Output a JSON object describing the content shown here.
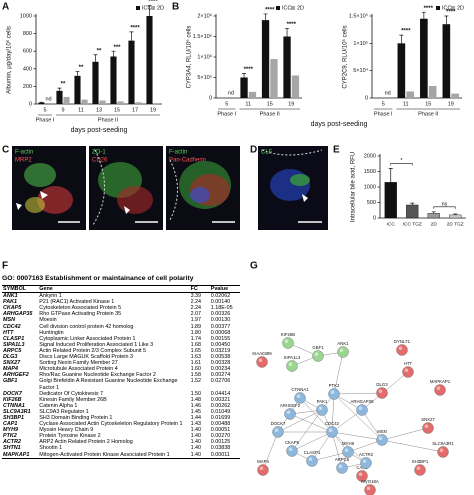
{
  "panel_labels": [
    "A",
    "B",
    "C",
    "D",
    "E",
    "F",
    "G"
  ],
  "chart_data": [
    {
      "type": "bar",
      "y_label": "Albumin, μg/day/10⁶ cells",
      "x_label": "days post-seeding",
      "categories": [
        "5",
        "9",
        "11",
        "13",
        "15",
        "17",
        "19"
      ],
      "phase_labels": [
        "Phase I",
        "Phase II"
      ],
      "series": [
        {
          "name": "ICC",
          "color": "#111111",
          "values": [
            15,
            150,
            320,
            480,
            540,
            720,
            1000
          ],
          "errors": [
            5,
            30,
            50,
            80,
            60,
            100,
            120
          ]
        },
        {
          "name": "2D",
          "color": "#a6a6a6",
          "values": [
            null,
            80,
            50,
            40,
            30,
            20,
            10
          ],
          "value_labels": [
            "nd",
            null,
            null,
            null,
            null,
            null,
            null
          ]
        }
      ],
      "significance": [
        null,
        "**",
        "**",
        "**",
        "***",
        "****",
        "****"
      ],
      "ylim": [
        0,
        1000
      ],
      "yticks": [
        0,
        200,
        400,
        600,
        800,
        1000
      ]
    },
    {
      "type": "bar",
      "y_label": "CYP3A4, RLU/10⁶ cells",
      "x_label": "days post-seeding",
      "categories": [
        "5",
        "11",
        "15",
        "19"
      ],
      "phase_labels": [
        "Phase I",
        "Phase II"
      ],
      "series": [
        {
          "name": "ICC",
          "color": "#111111",
          "values": [
            null,
            500000,
            1900000,
            1500000
          ],
          "errors": [
            null,
            100000,
            150000,
            200000
          ]
        },
        {
          "name": "2D",
          "color": "#a6a6a6",
          "values": [
            null,
            150000,
            950000,
            550000
          ],
          "value_labels": [
            "nd",
            null,
            null,
            null
          ]
        }
      ],
      "significance": [
        null,
        "****",
        "****",
        "****"
      ],
      "ylim": [
        0,
        2000000
      ],
      "yticks": [
        0,
        {
          "value": 500000,
          "label": "5×10⁵"
        },
        {
          "value": 1000000,
          "label": "1×10⁶"
        },
        {
          "value": 1500000,
          "label": "1.5×10⁶"
        },
        {
          "value": 2000000,
          "label": "2×10⁶"
        }
      ]
    },
    {
      "type": "bar",
      "y_label": "CYP2C9, RLU/10⁶ cells",
      "categories": [
        "5",
        "11",
        "15",
        "19"
      ],
      "phase_labels": [
        "Phase I",
        "Phase II"
      ],
      "series": [
        {
          "name": "ICC",
          "color": "#111111",
          "values": [
            null,
            100000,
            145000,
            135000
          ],
          "errors": [
            null,
            15000,
            12000,
            15000
          ]
        },
        {
          "name": "2D",
          "color": "#a6a6a6",
          "values": [
            null,
            12000,
            22000,
            8000
          ],
          "value_labels": [
            "nd",
            null,
            null,
            null
          ]
        }
      ],
      "significance": [
        null,
        "****",
        "****",
        "****"
      ],
      "ylim": [
        0,
        150000
      ],
      "yticks": [
        0,
        {
          "value": 50000,
          "label": "5×10⁴"
        },
        {
          "value": 100000,
          "label": "1×10⁵"
        },
        {
          "value": 150000,
          "label": "1.5×10⁵"
        }
      ]
    },
    {
      "type": "bar",
      "y_label": "Intracellular bile acid, RFU",
      "categories": [
        "ICC",
        "ICC TGZ",
        "2D",
        "2D TGZ"
      ],
      "values": [
        1150,
        420,
        150,
        100
      ],
      "errors": [
        450,
        60,
        50,
        30
      ],
      "colors": [
        "#111111",
        "#555555",
        "#999999",
        "#cccccc"
      ],
      "comparisons": [
        "*",
        "ns"
      ],
      "ylim": [
        0,
        2000
      ],
      "yticks": [
        0,
        500,
        1000,
        1500,
        2000
      ]
    }
  ],
  "images": [
    {
      "labels": [
        "F-actin",
        "MRP2"
      ]
    },
    {
      "labels": [
        "ZO-1",
        "CD26"
      ]
    },
    {
      "labels": [
        "F-actin",
        "Pan-Cadherin"
      ]
    },
    {
      "labels": [
        "CLF"
      ]
    }
  ],
  "table": {
    "title": "GO: 0007163 Establishment or maintainance of cell polarity",
    "header": [
      "SYMBOL",
      "Gene",
      "FC",
      "Pvalue"
    ],
    "rows": [
      [
        "ANK1",
        "Ankyrin 1",
        "3.39",
        "0.02062"
      ],
      [
        "PAK1",
        "P21 (RAC1) Activated Kinase 1",
        "2.24",
        "0.00140"
      ],
      [
        "CKAP5",
        "Cytoskeleton Associated Protein 5",
        "2.24",
        "1.18E-05"
      ],
      [
        "ARHGAP35",
        "Rho GTPase Activating Protein 35",
        "2.07",
        "0.00326"
      ],
      [
        "MSN",
        "Moesin",
        "1.97",
        "0.00130"
      ],
      [
        "CDC42",
        "Cell division control protein 42 homolog",
        "1.89",
        "0.00377"
      ],
      [
        "HTT",
        "Huntingtin",
        "1.80",
        "0.00068"
      ],
      [
        "CLASP1",
        "Cytoplasmic Linker Associated Protein 1",
        "1.74",
        "0.00155"
      ],
      [
        "SIPA1L3",
        "Signal Induced Proliferation Associated 1 Like 3",
        "1.68",
        "0.00450"
      ],
      [
        "ARPC5",
        "Actin Related Protein 2/3 Complex Subunit 5",
        "1.65",
        "0.03219"
      ],
      [
        "DLG3",
        "Discs Large MAGUK Scaffold Protein 3",
        "1.63",
        "0.00538"
      ],
      [
        "SNX27",
        "Sorting Nexin Family Member 27",
        "1.61",
        "0.00328"
      ],
      [
        "MAP4",
        "Microtubule Associated Protein 4",
        "1.60",
        "0.00234"
      ],
      [
        "ARHGEF2",
        "Rho/Rac Guanine Nucleotide Exchange Factor 2",
        "1.58",
        "0.00274"
      ],
      [
        "GBF1",
        "Golgi Brefeldin A Resistant Guanine Nucleotide Exchange Factor 1",
        "1.52",
        "0.02706"
      ],
      [
        "DOCK7",
        "Dedicator Of Cytokinesis 7",
        "1.50",
        "0.04414"
      ],
      [
        "KIF26B",
        "Kinesin Family Member 26B",
        "1.48",
        "0.00321"
      ],
      [
        "CTNNA1",
        "Catenin Alpha 1",
        "1.46",
        "0.00262"
      ],
      [
        "SLC9A3R1",
        "SLC9A3 Regulator 1",
        "1.45",
        "0.01049"
      ],
      [
        "SH3BP1",
        "SH3 Domain Binding Protein 1",
        "1.44",
        "0.01699"
      ],
      [
        "CAP1",
        "Cyclase Associated Actin Cytoskeleton Regulatory Protein 1",
        "1.43",
        "0.00488"
      ],
      [
        "MYH9",
        "Myosin Heavy Chain 9",
        "1.40",
        "0.00051"
      ],
      [
        "PTK2",
        "Protein Tyrosine Kinase 2",
        "1.40",
        "0.00270"
      ],
      [
        "ACTR2",
        "ARP2 Actin Related Protein 2 Homolog",
        "1.40",
        "0.00125"
      ],
      [
        "SHTN1",
        "Shootin 1",
        "1.40",
        "0.03838"
      ],
      [
        "MAPKAP1",
        "Mitogen-Activated Protein Kinase Associated Protein 1",
        "1.40",
        "0.00011"
      ]
    ]
  },
  "network": {
    "nodes": [
      {
        "label": "KIF26B",
        "color": "#9ad68f"
      },
      {
        "label": "KIAA0389",
        "color": "#e36b6b"
      },
      {
        "label": "GBF1",
        "color": "#9ad68f"
      },
      {
        "label": "ANK1",
        "color": "#9ad68f"
      },
      {
        "label": "SIPA1L3",
        "color": "#9ad68f"
      },
      {
        "label": "DYNLT1",
        "color": "#e36b6b"
      },
      {
        "label": "HTT",
        "color": "#e36b6b"
      },
      {
        "label": "DLG3",
        "color": "#e36b6b"
      },
      {
        "label": "MAPKAP1",
        "color": "#e36b6b"
      },
      {
        "label": "SNX27",
        "color": "#e36b6b"
      },
      {
        "label": "SLC9A3R1",
        "color": "#e36b6b"
      },
      {
        "label": "SH3BP1",
        "color": "#e36b6b"
      },
      {
        "label": "MAP4",
        "color": "#e36b6b"
      },
      {
        "label": "CAP1",
        "color": "#e36b6b"
      },
      {
        "label": "MYO18A",
        "color": "#e36b6b"
      },
      {
        "label": "CTNNA1",
        "color": "#8db7dc"
      },
      {
        "label": "PAK1",
        "color": "#8db7dc"
      },
      {
        "label": "PTK2",
        "color": "#8db7dc"
      },
      {
        "label": "ARHGAP35",
        "color": "#8db7dc"
      },
      {
        "label": "ARHGEF2",
        "color": "#8db7dc"
      },
      {
        "label": "DOCK7",
        "color": "#8db7dc"
      },
      {
        "label": "CDC42",
        "color": "#8db7dc"
      },
      {
        "label": "MSN",
        "color": "#8db7dc"
      },
      {
        "label": "CKAP5",
        "color": "#8db7dc"
      },
      {
        "label": "CLASP1",
        "color": "#8db7dc"
      },
      {
        "label": "MYH9",
        "color": "#8db7dc"
      },
      {
        "label": "ARPC5",
        "color": "#8db7dc"
      },
      {
        "label": "ACTR2",
        "color": "#8db7dc"
      }
    ]
  }
}
